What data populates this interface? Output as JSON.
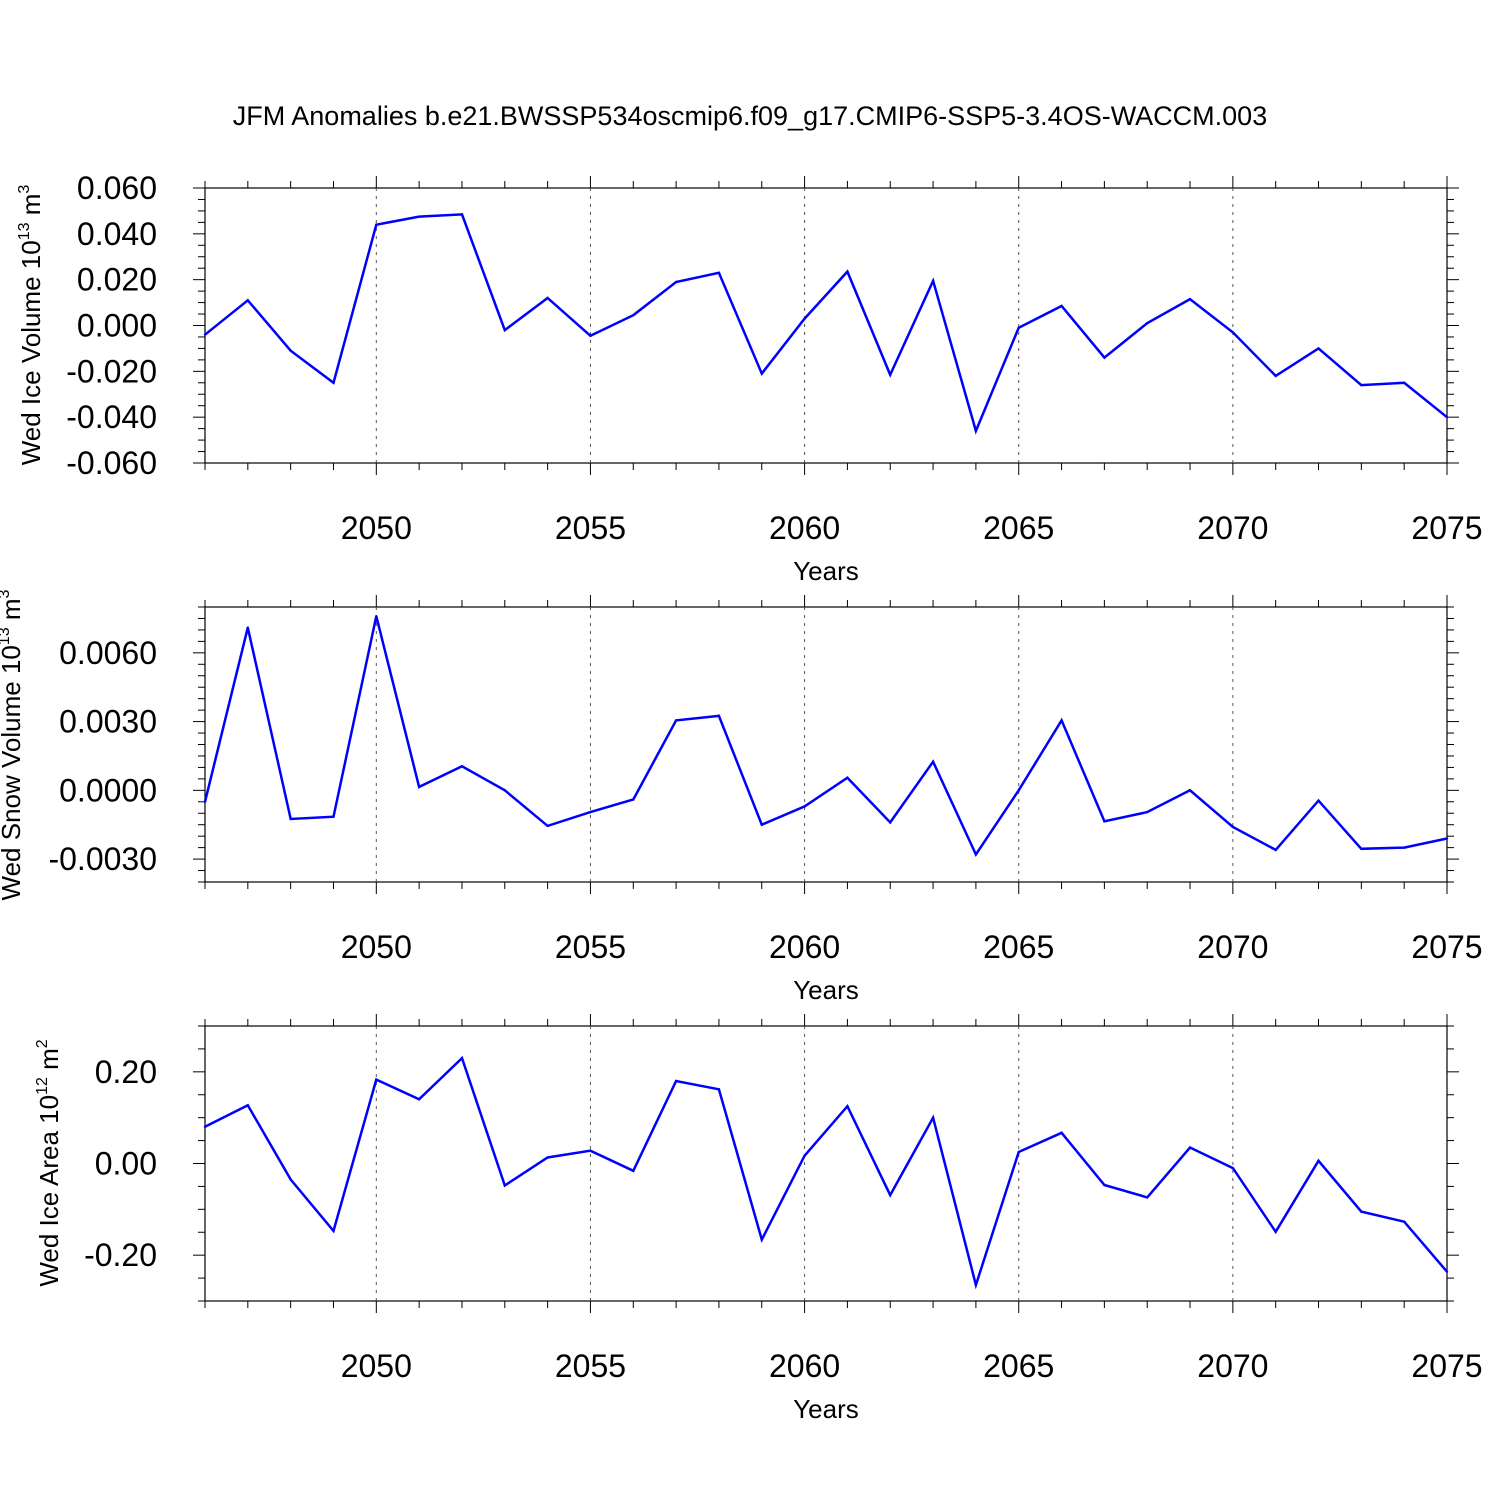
{
  "title": "JFM Anomalies b.e21.BWSSP534oscmip6.f09_g17.CMIP6-SSP5-3.4OS-WACCM.003",
  "chart_data": [
    {
      "type": "line",
      "xlabel": "Years",
      "ylabel": {
        "main": "Wed Ice Volume 10",
        "sup": "13",
        "unit": " m",
        "unit_sup": "3"
      },
      "xlim": [
        2046,
        2075
      ],
      "ylim": [
        -0.06,
        0.06
      ],
      "x_ticks": [
        "2050",
        "2055",
        "2060",
        "2065",
        "2070",
        "2075"
      ],
      "x_tick_values": [
        2050,
        2055,
        2060,
        2065,
        2070,
        2075
      ],
      "y_ticks": [
        "0.060",
        "0.040",
        "0.020",
        "0.000",
        "-0.020",
        "-0.040",
        "-0.060"
      ],
      "y_tick_values": [
        0.06,
        0.04,
        0.02,
        0.0,
        -0.02,
        -0.04,
        -0.06
      ],
      "y_minor_step": 0.005,
      "grid": "dashed vertical at labeled years",
      "color": "#0000ff",
      "x": [
        2046,
        2047,
        2048,
        2049,
        2050,
        2051,
        2052,
        2053,
        2054,
        2055,
        2056,
        2057,
        2058,
        2059,
        2060,
        2061,
        2062,
        2063,
        2064,
        2065,
        2066,
        2067,
        2068,
        2069,
        2070,
        2071,
        2072,
        2073,
        2074,
        2075
      ],
      "values": [
        -0.004,
        0.011,
        -0.011,
        -0.025,
        0.044,
        0.0475,
        0.0485,
        -0.002,
        0.012,
        -0.0045,
        0.0045,
        0.019,
        0.023,
        -0.021,
        0.003,
        0.0235,
        -0.0215,
        0.0195,
        -0.046,
        -0.001,
        0.0085,
        -0.014,
        0.001,
        0.0115,
        -0.003,
        -0.022,
        -0.01,
        -0.026,
        -0.025,
        -0.04
      ]
    },
    {
      "type": "line",
      "xlabel": "Years",
      "ylabel": {
        "main": "Wed Snow Volume 10",
        "sup": "13",
        "unit": " m",
        "unit_sup": "3"
      },
      "xlim": [
        2046,
        2075
      ],
      "ylim": [
        -0.004,
        0.008
      ],
      "x_ticks": [
        "2050",
        "2055",
        "2060",
        "2065",
        "2070",
        "2075"
      ],
      "x_tick_values": [
        2050,
        2055,
        2060,
        2065,
        2070,
        2075
      ],
      "y_ticks": [
        "0.0060",
        "0.0030",
        "0.0000",
        "-0.0030"
      ],
      "y_tick_values": [
        0.006,
        0.003,
        0.0,
        -0.003
      ],
      "y_minor_step": 0.0005,
      "grid": "dashed vertical at labeled years",
      "color": "#0000ff",
      "x": [
        2046,
        2047,
        2048,
        2049,
        2050,
        2051,
        2052,
        2053,
        2054,
        2055,
        2056,
        2057,
        2058,
        2059,
        2060,
        2061,
        2062,
        2063,
        2064,
        2065,
        2066,
        2067,
        2068,
        2069,
        2070,
        2071,
        2072,
        2073,
        2074,
        2075
      ],
      "values": [
        -0.0005,
        0.0071,
        -0.00125,
        -0.00115,
        0.0076,
        0.00015,
        0.00105,
        0.0,
        -0.00155,
        -0.00095,
        -0.0004,
        0.00305,
        0.00325,
        -0.0015,
        -0.0007,
        0.00055,
        -0.0014,
        0.00125,
        -0.0028,
        0.0,
        0.00305,
        -0.00135,
        -0.00095,
        0.0,
        -0.0016,
        -0.0026,
        -0.00045,
        -0.00255,
        -0.0025,
        -0.0021
      ]
    },
    {
      "type": "line",
      "xlabel": "Years",
      "ylabel": {
        "main": "Wed Ice Area 10",
        "sup": "12",
        "unit": " m",
        "unit_sup": "2"
      },
      "xlim": [
        2046,
        2075
      ],
      "ylim": [
        -0.3,
        0.3
      ],
      "x_ticks": [
        "2050",
        "2055",
        "2060",
        "2065",
        "2070",
        "2075"
      ],
      "x_tick_values": [
        2050,
        2055,
        2060,
        2065,
        2070,
        2075
      ],
      "y_ticks": [
        "0.20",
        "0.00",
        "-0.20"
      ],
      "y_tick_values": [
        0.2,
        0.0,
        -0.2
      ],
      "y_minor_step": 0.05,
      "grid": "dashed vertical at labeled years",
      "color": "#0000ff",
      "x": [
        2046,
        2047,
        2048,
        2049,
        2050,
        2051,
        2052,
        2053,
        2054,
        2055,
        2056,
        2057,
        2058,
        2059,
        2060,
        2061,
        2062,
        2063,
        2064,
        2065,
        2066,
        2067,
        2068,
        2069,
        2070,
        2071,
        2072,
        2073,
        2074,
        2075
      ],
      "values": [
        0.08,
        0.127,
        -0.035,
        -0.147,
        0.183,
        0.14,
        0.23,
        -0.048,
        0.013,
        0.028,
        -0.016,
        0.18,
        0.162,
        -0.166,
        0.017,
        0.125,
        -0.069,
        0.1,
        -0.265,
        0.025,
        0.067,
        -0.047,
        -0.074,
        0.035,
        -0.01,
        -0.149,
        0.006,
        -0.105,
        -0.127,
        -0.236
      ]
    }
  ]
}
